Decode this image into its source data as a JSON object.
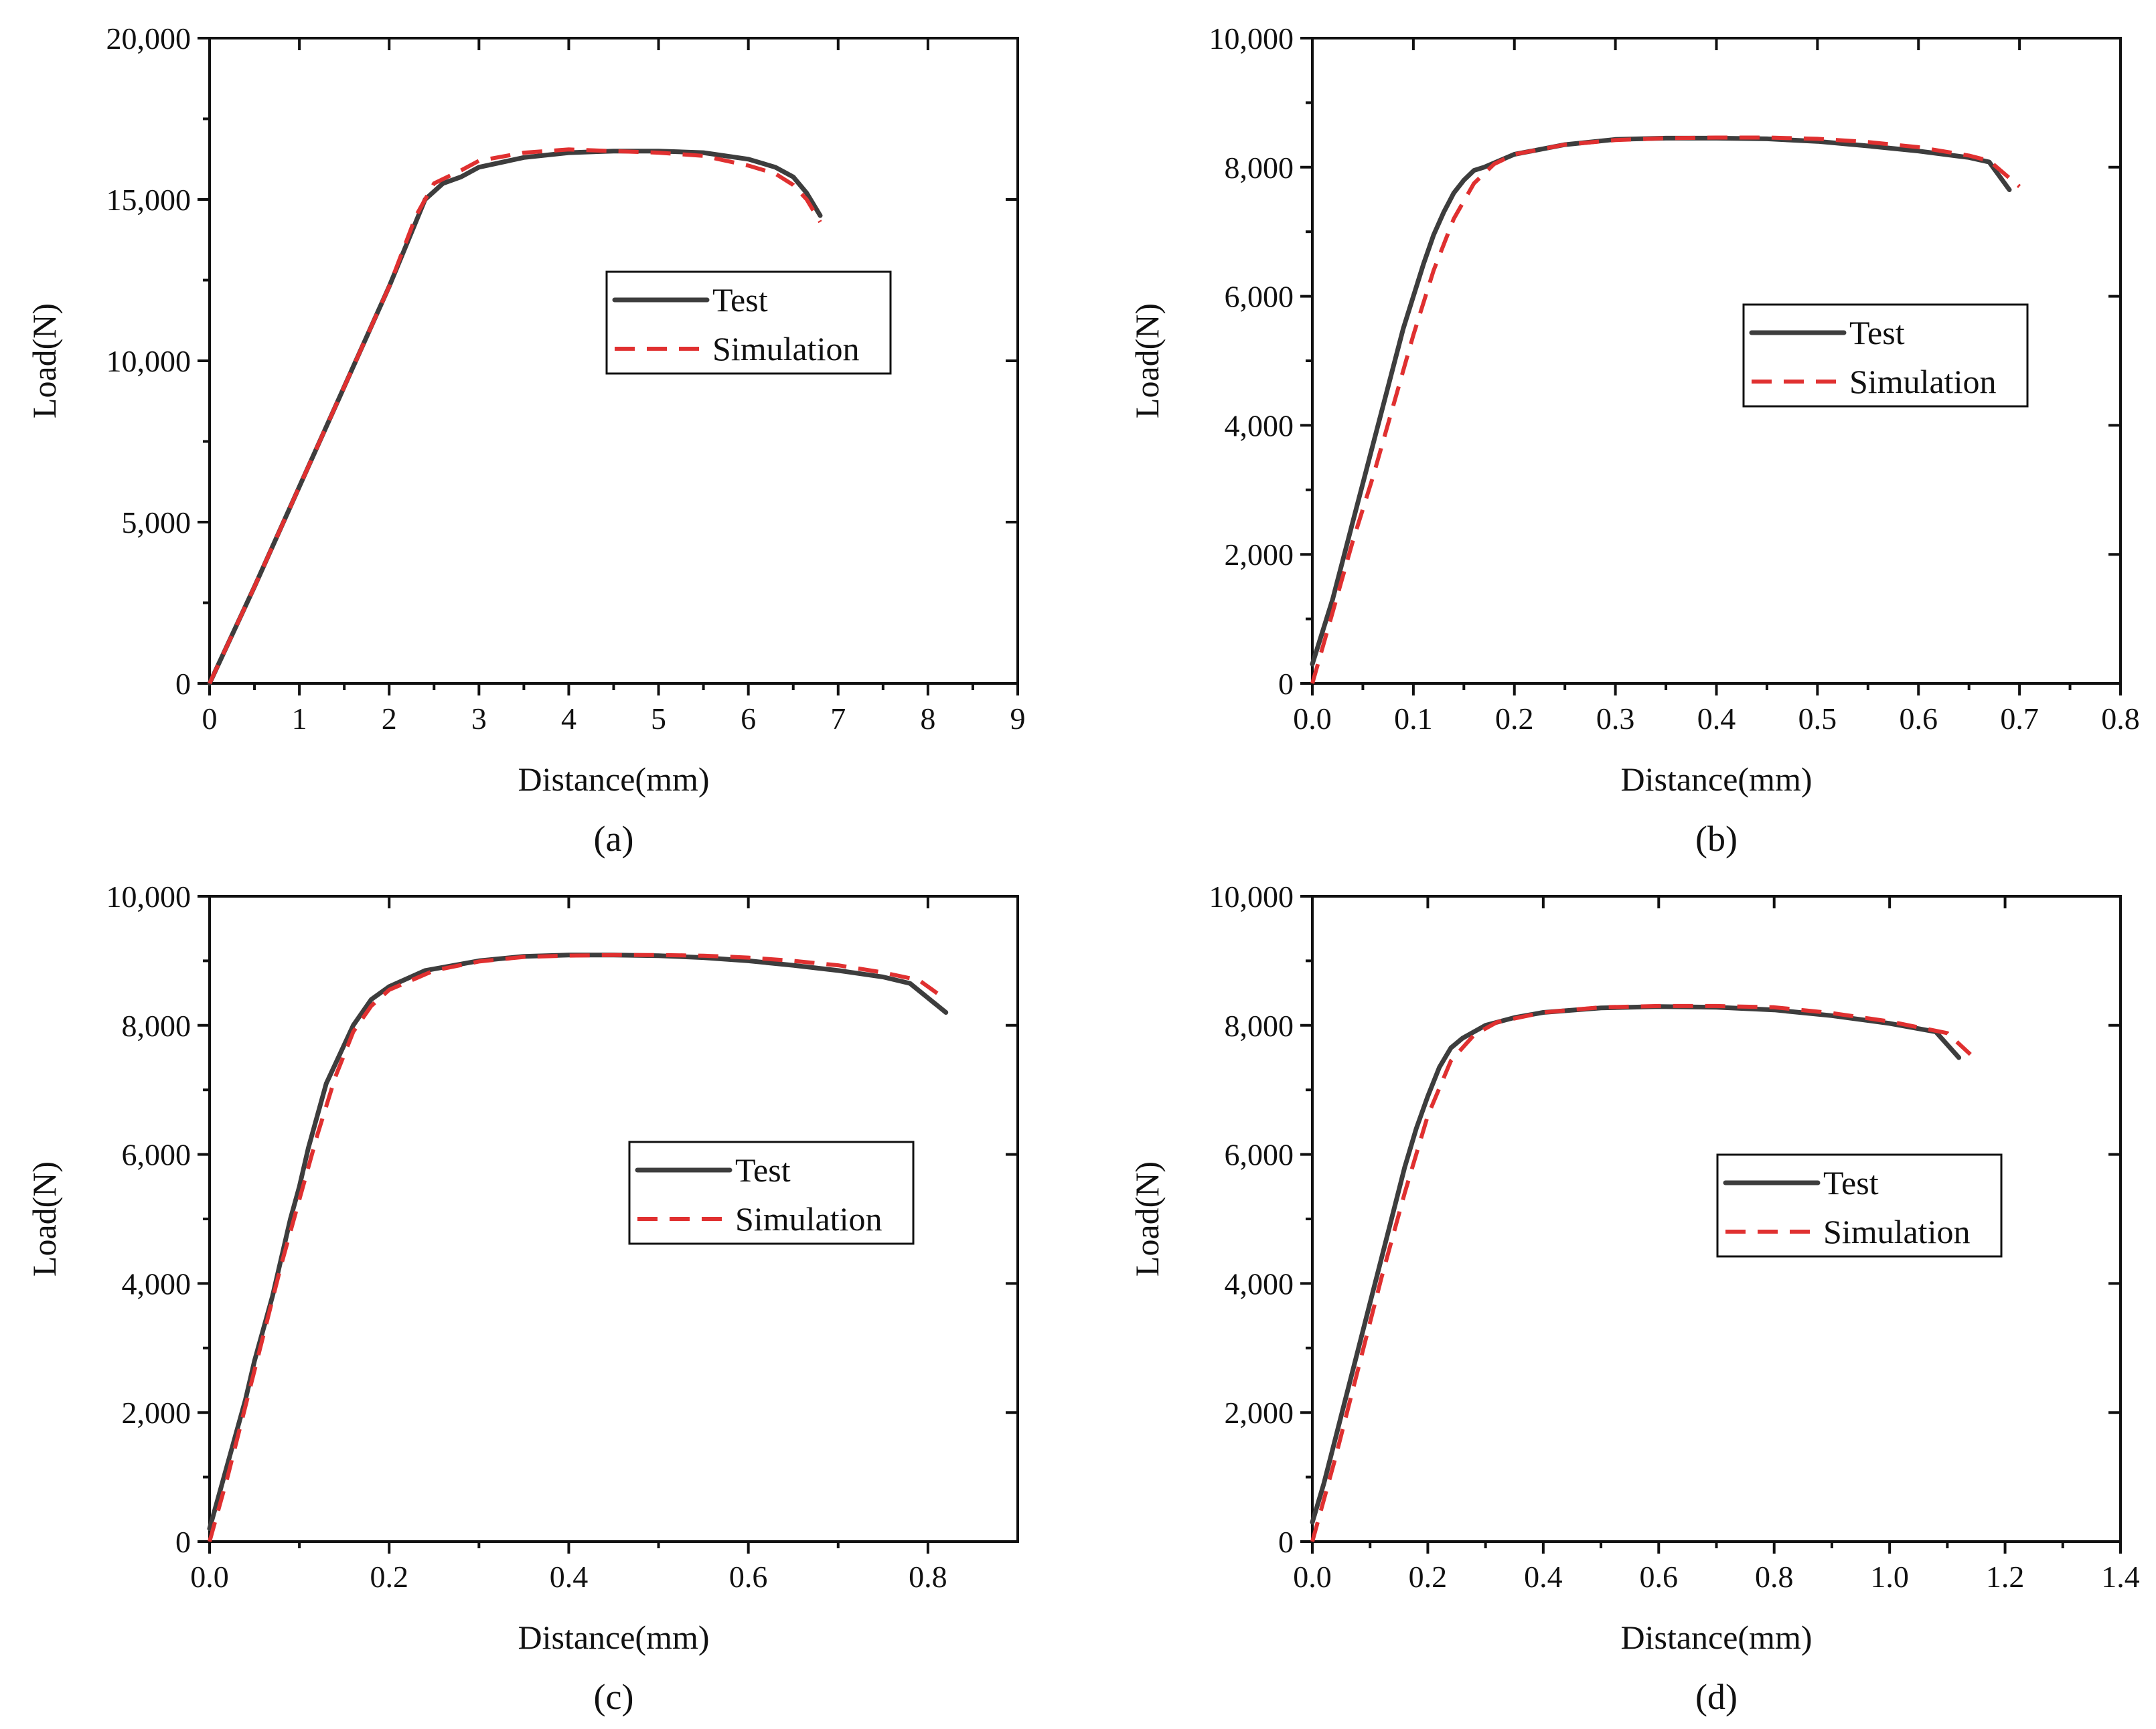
{
  "figure": {
    "colors": {
      "test": "#3d3d3d",
      "simulation": "#e03030",
      "axes": "#111111"
    }
  },
  "chart_data": [
    {
      "type": "line",
      "caption": "(a)",
      "xlabel": "Distance(mm)",
      "ylabel": "Load(N)",
      "xlim": [
        0,
        9
      ],
      "ylim": [
        0,
        20000
      ],
      "xticks": [
        0,
        1,
        2,
        3,
        4,
        5,
        6,
        7,
        8,
        9
      ],
      "xtick_labels": [
        "0",
        "1",
        "2",
        "3",
        "4",
        "5",
        "6",
        "7",
        "8",
        "9"
      ],
      "yticks": [
        0,
        5000,
        10000,
        15000,
        20000
      ],
      "ytick_labels": [
        "0",
        "5,000",
        "10,000",
        "15,000",
        "20,000"
      ],
      "legend": {
        "position": "center-right",
        "entries": [
          "Test",
          "Simulation"
        ]
      },
      "series": [
        {
          "name": "Test",
          "x": [
            0,
            0.5,
            1,
            1.5,
            2,
            2.4,
            2.6,
            2.8,
            3,
            3.5,
            4,
            4.5,
            5,
            5.5,
            6,
            6.3,
            6.5,
            6.65,
            6.8
          ],
          "y": [
            0,
            3000,
            6100,
            9200,
            12300,
            15000,
            15500,
            15700,
            16000,
            16300,
            16450,
            16500,
            16500,
            16450,
            16250,
            16000,
            15700,
            15200,
            14500
          ]
        },
        {
          "name": "Simulation",
          "x": [
            0,
            0.5,
            1,
            1.5,
            2,
            2.3,
            2.5,
            2.8,
            3,
            3.5,
            4,
            4.5,
            5,
            5.5,
            6,
            6.3,
            6.5,
            6.65,
            6.8
          ],
          "y": [
            0,
            3000,
            6100,
            9200,
            12300,
            14500,
            15500,
            15900,
            16200,
            16450,
            16550,
            16500,
            16450,
            16350,
            16050,
            15800,
            15450,
            15000,
            14300
          ]
        }
      ]
    },
    {
      "type": "line",
      "caption": "(b)",
      "xlabel": "Distance(mm)",
      "ylabel": "Load(N)",
      "xlim": [
        0,
        0.8
      ],
      "ylim": [
        0,
        10000
      ],
      "xticks": [
        0,
        0.1,
        0.2,
        0.3,
        0.4,
        0.5,
        0.6,
        0.7,
        0.8
      ],
      "xtick_labels": [
        "0.0",
        "0.1",
        "0.2",
        "0.3",
        "0.4",
        "0.5",
        "0.6",
        "0.7",
        "0.8"
      ],
      "yticks": [
        0,
        2000,
        4000,
        6000,
        8000,
        10000
      ],
      "ytick_labels": [
        "0",
        "2,000",
        "4,000",
        "6,000",
        "8,000",
        "10,000"
      ],
      "legend": {
        "position": "center-right",
        "entries": [
          "Test",
          "Simulation"
        ]
      },
      "series": [
        {
          "name": "Test",
          "x": [
            0,
            0.01,
            0.02,
            0.03,
            0.04,
            0.05,
            0.06,
            0.07,
            0.08,
            0.09,
            0.1,
            0.11,
            0.12,
            0.13,
            0.14,
            0.15,
            0.16,
            0.17,
            0.2,
            0.25,
            0.3,
            0.35,
            0.4,
            0.45,
            0.5,
            0.55,
            0.6,
            0.65,
            0.67,
            0.69
          ],
          "y": [
            300,
            800,
            1300,
            1900,
            2500,
            3100,
            3700,
            4300,
            4900,
            5500,
            6000,
            6500,
            6950,
            7300,
            7600,
            7800,
            7950,
            8000,
            8200,
            8350,
            8430,
            8450,
            8450,
            8440,
            8400,
            8330,
            8250,
            8150,
            8080,
            7650
          ]
        },
        {
          "name": "Simulation",
          "x": [
            0,
            0.02,
            0.04,
            0.06,
            0.08,
            0.1,
            0.12,
            0.14,
            0.16,
            0.18,
            0.2,
            0.25,
            0.3,
            0.35,
            0.4,
            0.45,
            0.5,
            0.55,
            0.6,
            0.65,
            0.67,
            0.7
          ],
          "y": [
            0,
            1100,
            2200,
            3200,
            4300,
            5400,
            6400,
            7200,
            7750,
            8050,
            8200,
            8350,
            8420,
            8450,
            8460,
            8460,
            8440,
            8390,
            8310,
            8180,
            8100,
            7700
          ]
        }
      ]
    },
    {
      "type": "line",
      "caption": "(c)",
      "xlabel": "Distance(mm)",
      "ylabel": "Load(N)",
      "xlim": [
        0,
        0.9
      ],
      "ylim": [
        0,
        10000
      ],
      "xticks": [
        0,
        0.2,
        0.4,
        0.6,
        0.8
      ],
      "xtick_labels": [
        "0.0",
        "0.2",
        "0.4",
        "0.6",
        "0.8"
      ],
      "yticks": [
        0,
        2000,
        4000,
        6000,
        8000,
        10000
      ],
      "ytick_labels": [
        "0",
        "2,000",
        "4,000",
        "6,000",
        "8,000",
        "10,000"
      ],
      "legend": {
        "position": "center-right",
        "entries": [
          "Test",
          "Simulation"
        ]
      },
      "series": [
        {
          "name": "Test",
          "x": [
            0,
            0.01,
            0.02,
            0.03,
            0.04,
            0.05,
            0.06,
            0.07,
            0.08,
            0.09,
            0.1,
            0.11,
            0.12,
            0.13,
            0.14,
            0.15,
            0.16,
            0.17,
            0.18,
            0.2,
            0.24,
            0.3,
            0.35,
            0.4,
            0.45,
            0.5,
            0.55,
            0.6,
            0.65,
            0.7,
            0.75,
            0.78,
            0.82
          ],
          "y": [
            200,
            700,
            1200,
            1700,
            2200,
            2800,
            3300,
            3800,
            4400,
            5000,
            5500,
            6100,
            6600,
            7100,
            7400,
            7700,
            8000,
            8200,
            8400,
            8600,
            8850,
            9000,
            9070,
            9090,
            9090,
            9080,
            9050,
            9000,
            8930,
            8850,
            8750,
            8650,
            8200
          ]
        },
        {
          "name": "Simulation",
          "x": [
            0,
            0.02,
            0.04,
            0.06,
            0.08,
            0.1,
            0.12,
            0.14,
            0.16,
            0.18,
            0.2,
            0.25,
            0.3,
            0.35,
            0.4,
            0.45,
            0.5,
            0.55,
            0.6,
            0.65,
            0.7,
            0.75,
            0.79,
            0.82
          ],
          "y": [
            0,
            1000,
            2100,
            3200,
            4300,
            5300,
            6300,
            7200,
            7900,
            8300,
            8550,
            8850,
            8990,
            9060,
            9080,
            9090,
            9090,
            9080,
            9050,
            9000,
            8930,
            8820,
            8700,
            8400
          ]
        }
      ]
    },
    {
      "type": "line",
      "caption": "(d)",
      "xlabel": "Distance(mm)",
      "ylabel": "Load(N)",
      "xlim": [
        0,
        1.4
      ],
      "ylim": [
        0,
        10000
      ],
      "xticks": [
        0,
        0.2,
        0.4,
        0.6,
        0.8,
        1.0,
        1.2,
        1.4
      ],
      "xtick_labels": [
        "0.0",
        "0.2",
        "0.4",
        "0.6",
        "0.8",
        "1.0",
        "1.2",
        "1.4"
      ],
      "yticks": [
        0,
        2000,
        4000,
        6000,
        8000,
        10000
      ],
      "ytick_labels": [
        "0",
        "2,000",
        "4,000",
        "6,000",
        "8,000",
        "10,000"
      ],
      "legend": {
        "position": "center-right",
        "entries": [
          "Test",
          "Simulation"
        ]
      },
      "series": [
        {
          "name": "Test",
          "x": [
            0,
            0.02,
            0.04,
            0.06,
            0.08,
            0.1,
            0.12,
            0.14,
            0.16,
            0.18,
            0.2,
            0.22,
            0.24,
            0.26,
            0.3,
            0.35,
            0.4,
            0.5,
            0.6,
            0.7,
            0.8,
            0.9,
            1.0,
            1.08,
            1.12
          ],
          "y": [
            300,
            900,
            1600,
            2300,
            3000,
            3700,
            4400,
            5100,
            5800,
            6400,
            6900,
            7350,
            7650,
            7800,
            8000,
            8120,
            8200,
            8270,
            8290,
            8280,
            8240,
            8150,
            8030,
            7900,
            7500
          ]
        },
        {
          "name": "Simulation",
          "x": [
            0,
            0.04,
            0.08,
            0.12,
            0.16,
            0.2,
            0.24,
            0.28,
            0.32,
            0.4,
            0.5,
            0.6,
            0.7,
            0.8,
            0.9,
            1.0,
            1.1,
            1.14
          ],
          "y": [
            0,
            1300,
            2700,
            4100,
            5400,
            6600,
            7450,
            7850,
            8050,
            8200,
            8280,
            8300,
            8300,
            8280,
            8190,
            8060,
            7880,
            7550
          ]
        }
      ]
    }
  ]
}
